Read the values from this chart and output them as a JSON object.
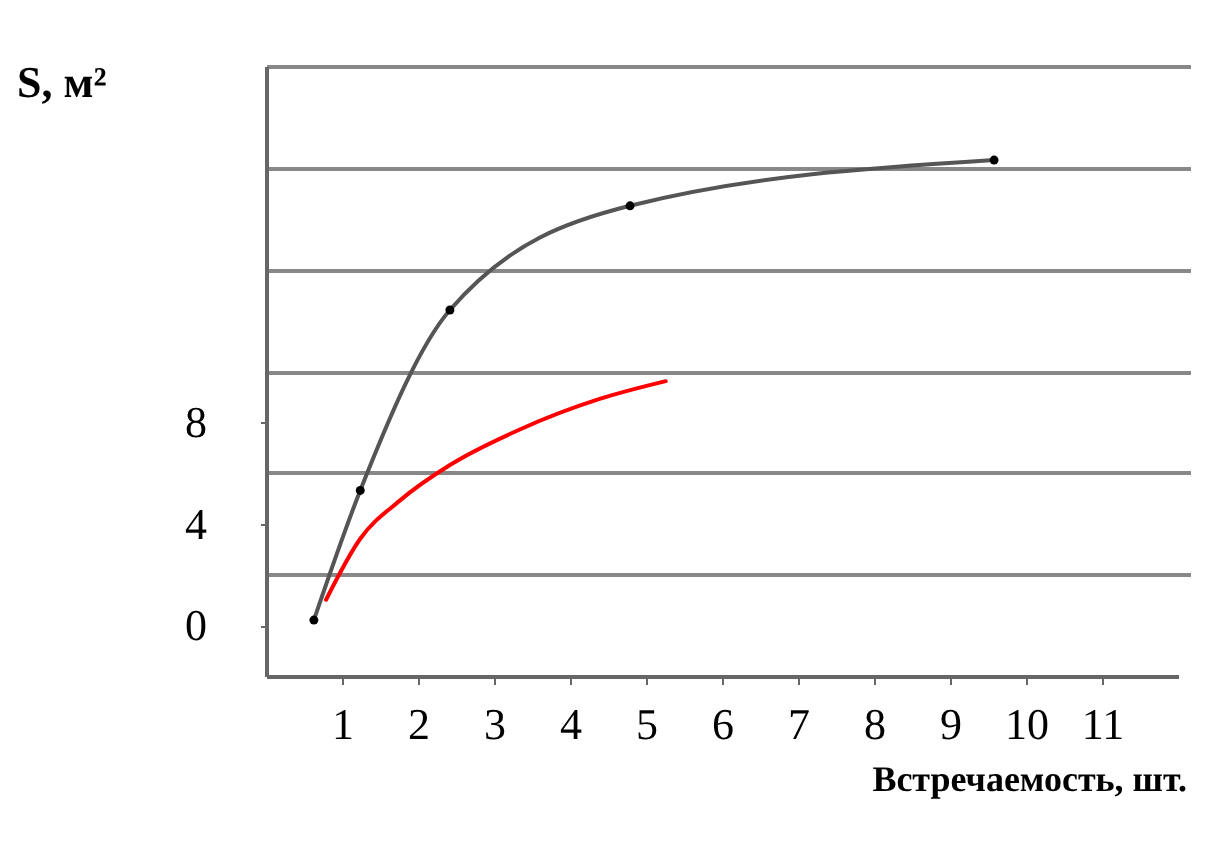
{
  "chart_data": {
    "type": "line",
    "xlabel": "Встречаемость, шт.",
    "ylabel": "S, м²",
    "xlim": [
      0,
      12
    ],
    "xticks": [
      1,
      2,
      3,
      4,
      5,
      6,
      7,
      8,
      9,
      10,
      11
    ],
    "ylim": [
      -2,
      22
    ],
    "yticks": [
      0,
      4,
      8,
      {
        "value": 2,
        "label": null
      },
      {
        "value": 6,
        "label": null
      },
      {
        "value": 10,
        "label": null
      },
      {
        "value": 14,
        "label": null
      },
      {
        "value": 18,
        "label": null
      },
      {
        "value": 22,
        "label": null
      }
    ],
    "grid": "y",
    "marker": "circle",
    "line_style": "solid",
    "series": [
      {
        "color": "#555555",
        "x": [
          0.63,
          1.24,
          2.42,
          4.79,
          9.58
        ],
        "values": [
          0.2,
          5.3,
          12.4,
          16.5,
          18.3
        ]
      },
      {
        "color": "#ff0000",
        "marker": "none",
        "x": [
          0.79,
          1.24,
          1.76,
          2.42,
          3.34,
          4.39,
          5.26
        ],
        "values": [
          1.0,
          3.4,
          4.9,
          6.3,
          7.7,
          8.9,
          9.6
        ]
      }
    ]
  }
}
